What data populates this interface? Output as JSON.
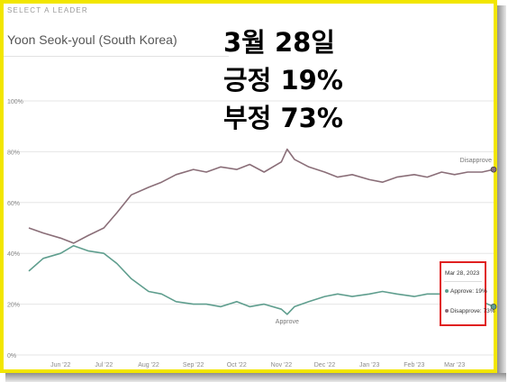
{
  "header": {
    "select_label": "SELECT A LEADER",
    "leader": "Yoon Seok-youl (South Korea)"
  },
  "overlay": {
    "date": "3월 28일",
    "approve_line": "긍정 19%",
    "disapprove_line": "부정 73%"
  },
  "tooltip": {
    "date": "Mar 28, 2023",
    "approve": "Approve: 19%",
    "disapprove": "Disapprove: 73%"
  },
  "colors": {
    "approve": "#5f9e8e",
    "disapprove": "#8a6e78",
    "grid": "#e6e6e6",
    "tooltip_border": "#e02020"
  },
  "chart_data": {
    "type": "line",
    "ylim": [
      0,
      100
    ],
    "y_ticks": [
      "0%",
      "20%",
      "40%",
      "60%",
      "80%",
      "100%"
    ],
    "y_tick_values": [
      0,
      20,
      40,
      60,
      80,
      100
    ],
    "x_ticks": [
      "Jun '22",
      "Jul '22",
      "Aug '22",
      "Sep '22",
      "Oct '22",
      "Nov '22",
      "Dec '22",
      "Jan '23",
      "Feb '23",
      "Mar '23"
    ],
    "x_tick_dates": [
      "2022-06-01",
      "2022-07-01",
      "2022-08-01",
      "2022-09-01",
      "2022-10-01",
      "2022-11-01",
      "2022-12-01",
      "2023-01-01",
      "2023-02-01",
      "2023-03-01"
    ],
    "x_range": [
      "2022-05-10",
      "2023-03-28"
    ],
    "grid": true,
    "series": [
      {
        "name": "Disapprove",
        "x": [
          "2022-05-10",
          "2022-05-20",
          "2022-06-01",
          "2022-06-10",
          "2022-06-20",
          "2022-07-01",
          "2022-07-10",
          "2022-07-20",
          "2022-08-01",
          "2022-08-10",
          "2022-08-20",
          "2022-09-01",
          "2022-09-10",
          "2022-09-20",
          "2022-10-01",
          "2022-10-10",
          "2022-10-20",
          "2022-11-01",
          "2022-11-05",
          "2022-11-10",
          "2022-11-20",
          "2022-12-01",
          "2022-12-10",
          "2022-12-20",
          "2023-01-01",
          "2023-01-10",
          "2023-01-20",
          "2023-02-01",
          "2023-02-10",
          "2023-02-20",
          "2023-03-01",
          "2023-03-10",
          "2023-03-20",
          "2023-03-28"
        ],
        "values": [
          50,
          48,
          46,
          44,
          47,
          50,
          56,
          63,
          66,
          68,
          71,
          73,
          72,
          74,
          73,
          75,
          72,
          76,
          81,
          77,
          74,
          72,
          70,
          71,
          69,
          68,
          70,
          71,
          70,
          72,
          71,
          72,
          72,
          73
        ]
      },
      {
        "name": "Approve",
        "x": [
          "2022-05-10",
          "2022-05-20",
          "2022-06-01",
          "2022-06-10",
          "2022-06-20",
          "2022-07-01",
          "2022-07-10",
          "2022-07-20",
          "2022-08-01",
          "2022-08-10",
          "2022-08-20",
          "2022-09-01",
          "2022-09-10",
          "2022-09-20",
          "2022-10-01",
          "2022-10-10",
          "2022-10-20",
          "2022-11-01",
          "2022-11-05",
          "2022-11-10",
          "2022-11-20",
          "2022-12-01",
          "2022-12-10",
          "2022-12-20",
          "2023-01-01",
          "2023-01-10",
          "2023-01-20",
          "2023-02-01",
          "2023-02-10",
          "2023-02-20",
          "2023-03-01",
          "2023-03-10",
          "2023-03-20",
          "2023-03-28"
        ],
        "values": [
          33,
          38,
          40,
          43,
          41,
          40,
          36,
          30,
          25,
          24,
          21,
          20,
          20,
          19,
          21,
          19,
          20,
          18,
          16,
          19,
          21,
          23,
          24,
          23,
          24,
          25,
          24,
          23,
          24,
          24,
          23,
          22,
          21,
          19
        ]
      }
    ]
  }
}
